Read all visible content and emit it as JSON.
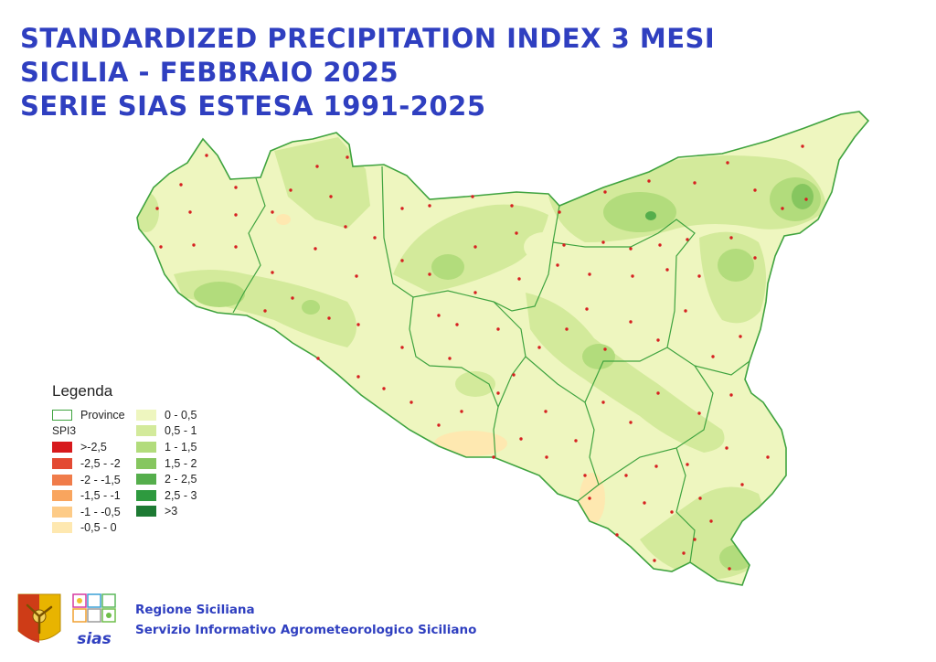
{
  "title": {
    "line1": "STANDARDIZED PRECIPITATION INDEX 3 MESI",
    "line2": "SICILIA - FEBBRAIO 2025",
    "line3": "SERIE SIAS ESTESA 1991-2025"
  },
  "legend": {
    "heading": "Legenda",
    "province_label": "Province",
    "index_label": "SPI3",
    "classes_negative": [
      {
        "label": ">-2,5",
        "color": "#d7191c"
      },
      {
        "label": "-2,5 - -2",
        "color": "#e34a33"
      },
      {
        "label": "-2 - -1,5",
        "color": "#f07c4a"
      },
      {
        "label": "-1,5 - -1",
        "color": "#f9a55e"
      },
      {
        "label": "-1 - -0,5",
        "color": "#fdcb87"
      },
      {
        "label": "-0,5 - 0",
        "color": "#fee8b0"
      }
    ],
    "classes_positive": [
      {
        "label": "0 - 0,5",
        "color": "#eef6bf"
      },
      {
        "label": "0,5 - 1",
        "color": "#d3ea9b"
      },
      {
        "label": "1 - 1,5",
        "color": "#b2dc7c"
      },
      {
        "label": "1,5 - 2",
        "color": "#86c65f"
      },
      {
        "label": "2 - 2,5",
        "color": "#55ae4c"
      },
      {
        "label": "2,5 - 3",
        "color": "#2e9a3f"
      },
      {
        "label": ">3",
        "color": "#1d7a33"
      }
    ]
  },
  "map_colors": {
    "base": "#eef6bf",
    "border": "#3fa33f",
    "station": "#d62020"
  },
  "footer": {
    "org": "Regione Siciliana",
    "service": "Servizio Informativo Agrometeorologico Siciliano"
  },
  "logos": {
    "region": "trinacria-logo",
    "sias": "sias",
    "sias_icons": "weather-icons"
  }
}
